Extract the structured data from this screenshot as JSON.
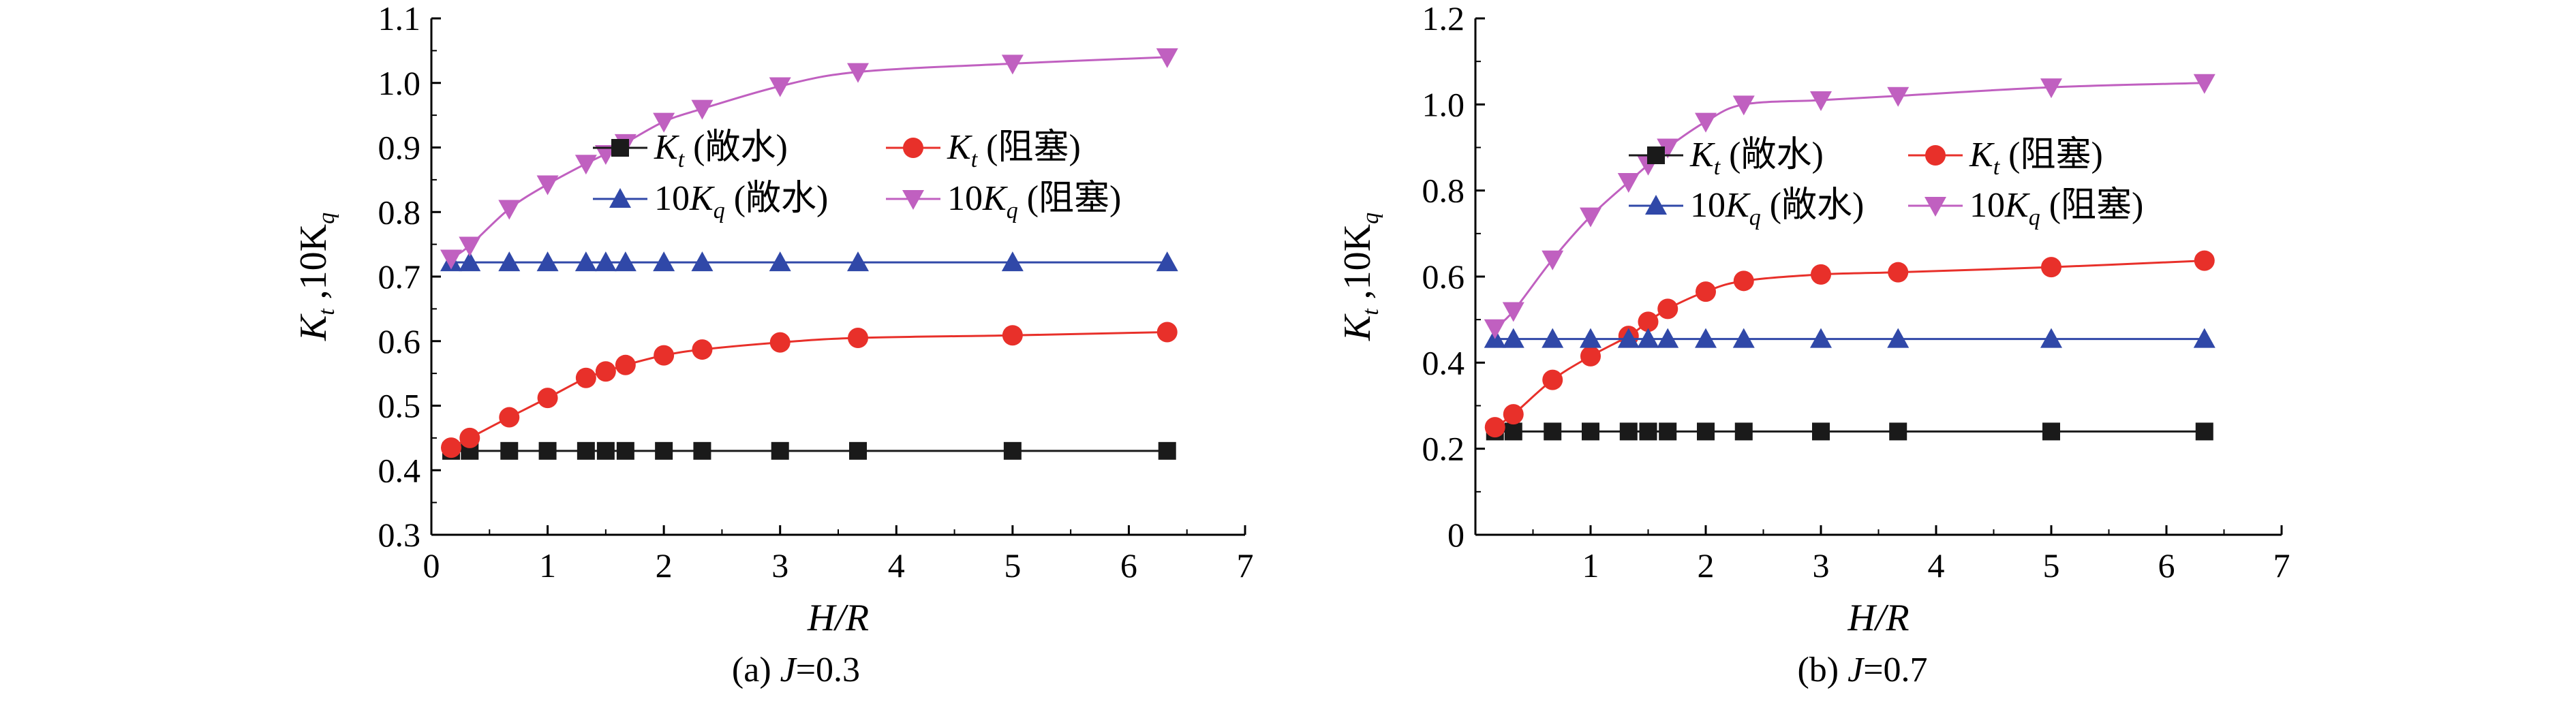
{
  "chart_data": [
    {
      "type": "line",
      "caption_prefix": "(a) ",
      "caption_var": "J",
      "caption_value": "=0.3",
      "xlabel": "H/R",
      "ylabel": "K_t ,10K_q",
      "xlim": [
        0,
        7
      ],
      "ylim": [
        0.3,
        1.1
      ],
      "xticks": [
        "0",
        "1",
        "2",
        "3",
        "4",
        "5",
        "6",
        "7"
      ],
      "yticks": [
        "0.3",
        "0.4",
        "0.5",
        "0.6",
        "0.7",
        "0.8",
        "0.9",
        "1.0",
        "1.1"
      ],
      "x": [
        0.17,
        0.33,
        0.67,
        1.0,
        1.33,
        1.5,
        1.67,
        2.0,
        2.33,
        3.0,
        3.67,
        5.0,
        6.33
      ],
      "series": [
        {
          "name": "Kt (敞水)",
          "var": "K",
          "sub": "t",
          "coef": "",
          "cond": " (敞水)",
          "color": "#1a1a1a",
          "marker": "square",
          "values": [
            0.43,
            0.43,
            0.43,
            0.43,
            0.43,
            0.43,
            0.43,
            0.43,
            0.43,
            0.43,
            0.43,
            0.43,
            0.43
          ]
        },
        {
          "name": "Kt (阻塞)",
          "var": "K",
          "sub": "t",
          "coef": "",
          "cond": " (阻塞)",
          "color": "#e8302a",
          "marker": "circle",
          "values": [
            0.435,
            0.45,
            0.482,
            0.512,
            0.543,
            0.553,
            0.563,
            0.578,
            0.587,
            0.598,
            0.605,
            0.609,
            0.614
          ]
        },
        {
          "name": "10Kq (敞水)",
          "var": "K",
          "sub": "q",
          "coef": "10",
          "cond": " (敞水)",
          "color": "#3048a8",
          "marker": "triangle-up",
          "values": [
            0.722,
            0.722,
            0.722,
            0.722,
            0.722,
            0.722,
            0.722,
            0.722,
            0.722,
            0.722,
            0.722,
            0.722,
            0.722
          ]
        },
        {
          "name": "10Kq (阻塞)",
          "var": "K",
          "sub": "q",
          "coef": "10",
          "cond": " (阻塞)",
          "color": "#c060c0",
          "marker": "triangle-down",
          "values": [
            0.728,
            0.748,
            0.805,
            0.843,
            0.875,
            0.89,
            0.907,
            0.94,
            0.96,
            0.995,
            1.017,
            1.03,
            1.04
          ]
        }
      ]
    },
    {
      "type": "line",
      "caption_prefix": "(b) ",
      "caption_var": "J",
      "caption_value": "=0.7",
      "xlabel": "H/R",
      "ylabel": "K_t ,10K_q",
      "xlim": [
        0,
        7
      ],
      "ylim": [
        0,
        1.2
      ],
      "xticks": [
        "",
        "1",
        "2",
        "3",
        "4",
        "5",
        "6",
        "7"
      ],
      "yticks": [
        "0",
        "0.2",
        "0.4",
        "0.6",
        "0.8",
        "1.0",
        "1.2"
      ],
      "x": [
        0.17,
        0.33,
        0.67,
        1.0,
        1.33,
        1.5,
        1.67,
        2.0,
        2.33,
        3.0,
        3.67,
        5.0,
        6.33
      ],
      "series": [
        {
          "name": "Kt (敞水)",
          "var": "K",
          "sub": "t",
          "coef": "",
          "cond": " (敞水)",
          "color": "#1a1a1a",
          "marker": "square",
          "values": [
            0.24,
            0.24,
            0.24,
            0.24,
            0.24,
            0.24,
            0.24,
            0.24,
            0.24,
            0.24,
            0.24,
            0.24,
            0.24
          ]
        },
        {
          "name": "Kt (阻塞)",
          "var": "K",
          "sub": "t",
          "coef": "",
          "cond": " (阻塞)",
          "color": "#e8302a",
          "marker": "circle",
          "values": [
            0.25,
            0.28,
            0.36,
            0.415,
            0.462,
            0.495,
            0.525,
            0.565,
            0.59,
            0.605,
            0.61,
            0.622,
            0.637
          ]
        },
        {
          "name": "10Kq (敞水)",
          "var": "K",
          "sub": "q",
          "coef": "10",
          "cond": " (敞水)",
          "color": "#3048a8",
          "marker": "triangle-up",
          "values": [
            0.455,
            0.455,
            0.455,
            0.455,
            0.455,
            0.455,
            0.455,
            0.455,
            0.455,
            0.455,
            0.455,
            0.455,
            0.455
          ]
        },
        {
          "name": "10Kq (阻塞)",
          "var": "K",
          "sub": "q",
          "coef": "10",
          "cond": " (阻塞)",
          "color": "#c060c0",
          "marker": "triangle-down",
          "values": [
            0.48,
            0.52,
            0.64,
            0.74,
            0.82,
            0.86,
            0.9,
            0.96,
            1.0,
            1.01,
            1.02,
            1.04,
            1.05
          ]
        }
      ]
    }
  ]
}
